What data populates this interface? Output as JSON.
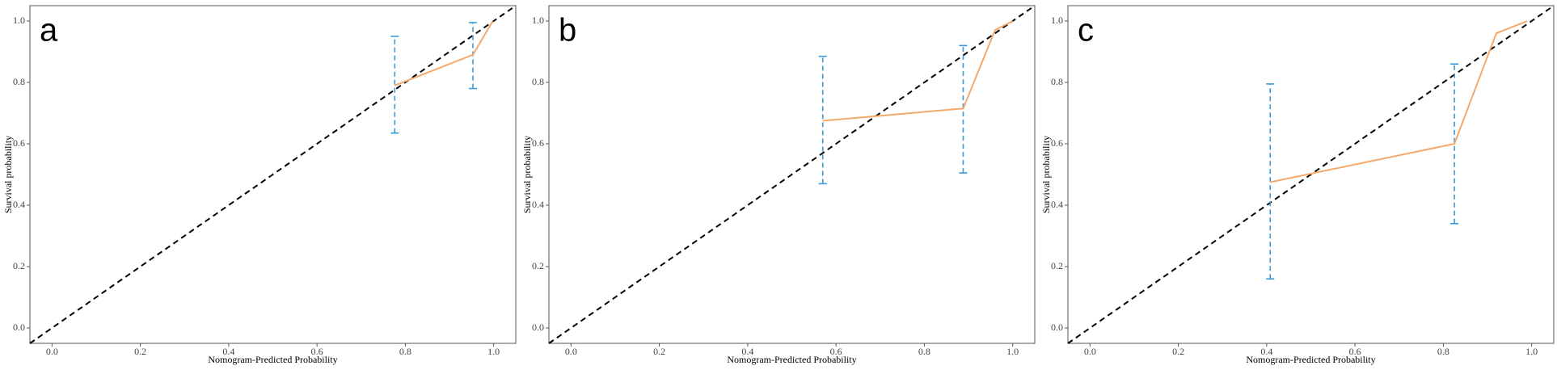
{
  "chart_data": [
    {
      "type": "calibration",
      "panel_label": "a",
      "xlabel": "Nomogram-Predicted Probability",
      "ylabel": "Survival probability",
      "xlim": [
        -0.05,
        1.05
      ],
      "ylim": [
        -0.05,
        1.05
      ],
      "xticks": [
        {
          "value": 0,
          "label": "0.0"
        },
        0.2,
        0.4,
        0.6,
        0.8,
        {
          "value": 1,
          "label": "1.0"
        }
      ],
      "yticks": [
        {
          "value": 0,
          "label": "0.0"
        },
        0.2,
        0.4,
        0.6,
        0.8,
        {
          "value": 1,
          "label": "1.0"
        }
      ],
      "x": [
        0.776,
        0.953,
        0.998
      ],
      "values": [
        0.79,
        0.89,
        1.0
      ],
      "color": "#f4a96b",
      "errorbars": {
        "x": [
          0.776,
          0.953
        ],
        "lower": [
          0.635,
          0.78
        ],
        "upper": [
          0.95,
          0.995
        ],
        "color": "#3a9ad9"
      }
    },
    {
      "type": "calibration",
      "panel_label": "b",
      "xlabel": "Nomogram-Predicted Probability",
      "ylabel": "Survival probability",
      "xlim": [
        -0.05,
        1.05
      ],
      "ylim": [
        -0.05,
        1.05
      ],
      "xticks": [
        {
          "value": 0,
          "label": "0.0"
        },
        0.2,
        0.4,
        0.6,
        0.8,
        {
          "value": 1,
          "label": "1.0"
        }
      ],
      "yticks": [
        {
          "value": 0,
          "label": "0.0"
        },
        0.2,
        0.4,
        0.6,
        0.8,
        {
          "value": 1,
          "label": "1.0"
        }
      ],
      "x": [
        0.57,
        0.888,
        0.96,
        1.0
      ],
      "values": [
        0.675,
        0.715,
        0.97,
        1.0
      ],
      "color": "#f4a96b",
      "errorbars": {
        "x": [
          0.57,
          0.888
        ],
        "lower": [
          0.47,
          0.505
        ],
        "upper": [
          0.885,
          0.92
        ],
        "color": "#3a9ad9"
      }
    },
    {
      "type": "calibration",
      "panel_label": "c",
      "xlabel": "Nomogram-Predicted Probability",
      "ylabel": "Survival probability",
      "xlim": [
        -0.05,
        1.05
      ],
      "ylim": [
        -0.05,
        1.05
      ],
      "xticks": [
        {
          "value": 0,
          "label": "0.0"
        },
        0.2,
        0.4,
        0.6,
        0.8,
        {
          "value": 1,
          "label": "1.0"
        }
      ],
      "yticks": [
        {
          "value": 0,
          "label": "0.0"
        },
        0.2,
        0.4,
        0.6,
        0.8,
        {
          "value": 1,
          "label": "1.0"
        }
      ],
      "x": [
        0.408,
        0.825,
        0.92,
        0.99
      ],
      "values": [
        0.475,
        0.6,
        0.96,
        1.0
      ],
      "color": "#f4a96b",
      "errorbars": {
        "x": [
          0.408,
          0.825
        ],
        "lower": [
          0.16,
          0.34
        ],
        "upper": [
          0.795,
          0.86
        ],
        "color": "#3a9ad9"
      }
    }
  ]
}
